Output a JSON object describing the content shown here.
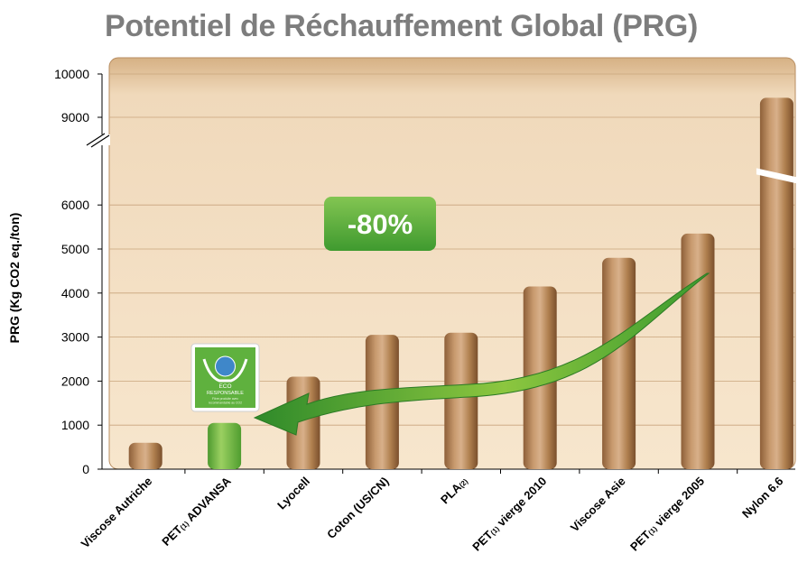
{
  "title": "Potentiel de Réchauffement Global (PRG)",
  "ylabel": "PRG (Kg CO2 eq./ton)",
  "annotation": "-80%",
  "eco_logo": {
    "line1": "ECO",
    "line2": "RESPONSABLE",
    "line3": "Fibre produite avec",
    "line4": "recommandable au CO2"
  },
  "colors": {
    "plot_bg": "#f3ddc0",
    "bar_brown": "#b6855a",
    "bar_green": "#7ac043",
    "arrow_green": "#3a9d2e",
    "badge_green": "#5fae3a"
  },
  "chart_data": {
    "type": "bar",
    "ylabel": "PRG (Kg CO2 eq./ton)",
    "ylim": [
      0,
      10000
    ],
    "axis_break": [
      6500,
      8800
    ],
    "yticks": [
      "0",
      "1000",
      "2000",
      "3000",
      "4000",
      "5000",
      "6000",
      "9000",
      "10000"
    ],
    "grid": true,
    "categories": [
      {
        "label": "Viscose Autriche",
        "parts": [
          {
            "t": "Viscose Autriche"
          }
        ]
      },
      {
        "label": "PET(1) ADVANSA",
        "parts": [
          {
            "t": "PET"
          },
          {
            "t": "(1)",
            "sub": true
          },
          {
            "t": " ADVANSA"
          }
        ]
      },
      {
        "label": "Lyocell",
        "parts": [
          {
            "t": "Lyocell"
          }
        ]
      },
      {
        "label": "Coton (US/CN)",
        "parts": [
          {
            "t": "Coton (US/CN)"
          }
        ]
      },
      {
        "label": "PLA(2)",
        "parts": [
          {
            "t": "PLA"
          },
          {
            "t": "(2)",
            "sub": true
          }
        ]
      },
      {
        "label": "PET(1) vierge 2010",
        "parts": [
          {
            "t": "PET"
          },
          {
            "t": "(1)",
            "sub": true
          },
          {
            "t": " vierge 2010"
          }
        ]
      },
      {
        "label": "Viscose Asie",
        "parts": [
          {
            "t": "Viscose Asie"
          }
        ]
      },
      {
        "label": "PET(1) vierge 2005",
        "parts": [
          {
            "t": "PET"
          },
          {
            "t": "(1)",
            "sub": true
          },
          {
            "t": " vierge 2005"
          }
        ]
      },
      {
        "label": "Nylon 6.6",
        "parts": [
          {
            "t": "Nylon 6.6"
          }
        ]
      }
    ],
    "values": [
      600,
      1050,
      2100,
      3050,
      3100,
      4150,
      4800,
      5350,
      9450
    ],
    "highlight_index": 1
  }
}
